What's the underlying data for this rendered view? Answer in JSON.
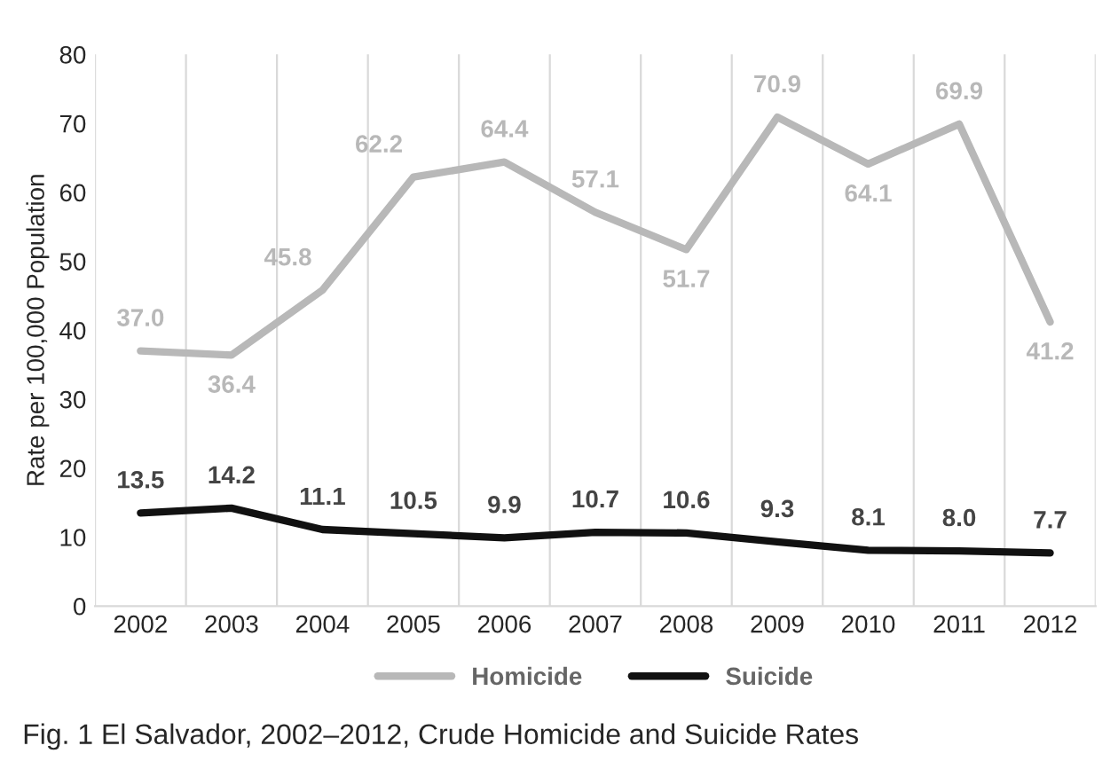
{
  "chart_data": {
    "type": "line",
    "ylabel": "Rate per 100,000 Population",
    "categories": [
      "2002",
      "2003",
      "2004",
      "2005",
      "2006",
      "2007",
      "2008",
      "2009",
      "2010",
      "2011",
      "2012"
    ],
    "series": [
      {
        "name": "Homicide",
        "color": "#b8b8b8",
        "values": [
          37.0,
          36.4,
          45.8,
          62.2,
          64.4,
          57.1,
          51.7,
          70.9,
          64.1,
          69.9,
          41.2
        ],
        "value_labels": [
          "37.0",
          "36.4",
          "45.8",
          "62.2",
          "64.4",
          "57.1",
          "51.7",
          "70.9",
          "64.1",
          "69.9",
          "41.2"
        ]
      },
      {
        "name": "Suicide",
        "color": "#111111",
        "values": [
          13.5,
          14.2,
          11.1,
          10.5,
          9.9,
          10.7,
          10.6,
          9.3,
          8.1,
          8.0,
          7.7
        ],
        "value_labels": [
          "13.5",
          "14.2",
          "11.1",
          "10.5",
          "9.9",
          "10.7",
          "10.6",
          "9.3",
          "8.1",
          "8.0",
          "7.7"
        ]
      }
    ],
    "ylim": [
      0,
      80
    ],
    "yticks": [
      0,
      10,
      20,
      30,
      40,
      50,
      60,
      70,
      80
    ],
    "grid": "x",
    "legend": "bottom",
    "marker": "none",
    "line_style": "solid",
    "annotations": [
      "Fig. 1 El Salvador, 2002–2012, Crude Homicide and Suicide Rates"
    ]
  }
}
